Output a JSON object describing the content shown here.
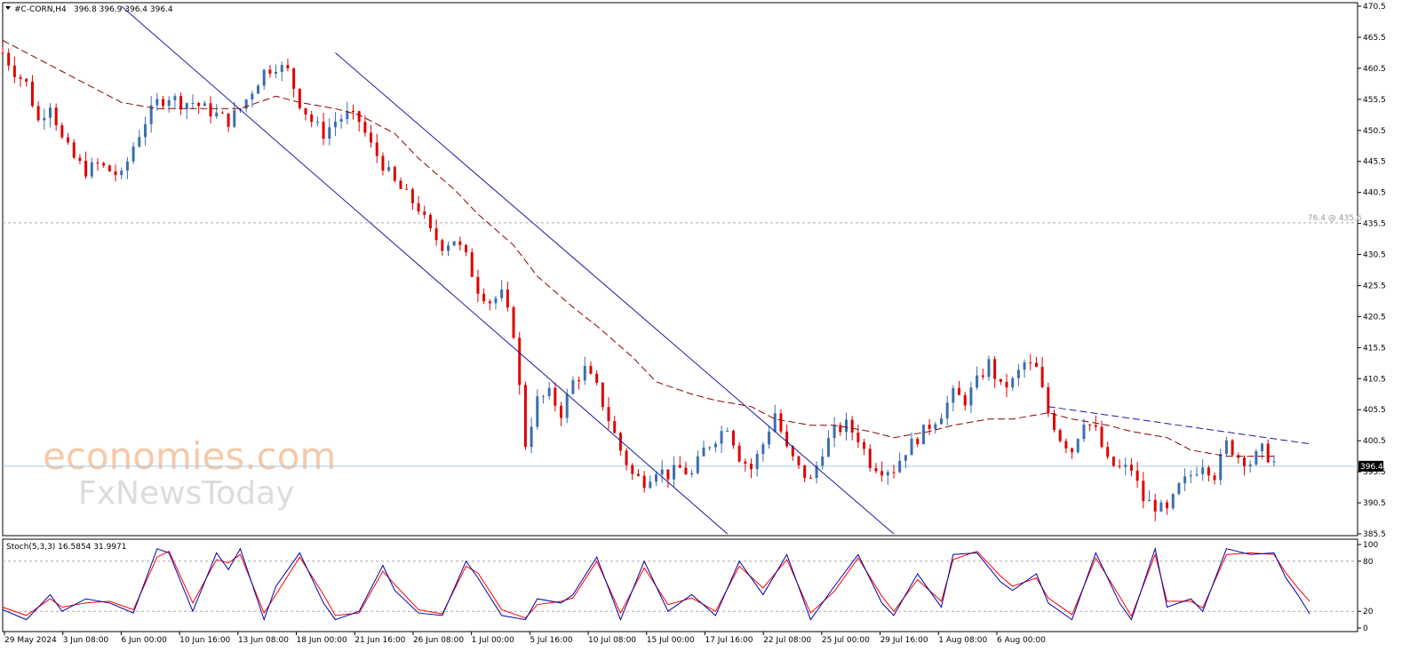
{
  "header": {
    "symbol_label": "#C-CORN,H4",
    "ohlc": "396.8 396.9 396.4 396.4"
  },
  "stoch_label": "Stoch(5,3,3) 16.5854 31.9971",
  "fib_label": "76.4 @ 435.6",
  "current_price": "396.4",
  "watermark": {
    "line1": "economies.com",
    "line2": "FxNewsToday"
  },
  "colors": {
    "bull": "#3a6fb0",
    "bear": "#e00000",
    "ma": "#8b0000",
    "channel": "#1a1aa6",
    "stoch_main": "#0000aa",
    "stoch_signal": "#ff0000",
    "price_line": "#a9cce3"
  },
  "chart_data": {
    "type": "candlestick",
    "symbol": "#C-CORN",
    "timeframe": "H4",
    "ylim": [
      385.5,
      470.5
    ],
    "y_ticks": [
      "470.5",
      "465.5",
      "460.5",
      "455.5",
      "450.5",
      "445.5",
      "440.5",
      "435.5",
      "430.5",
      "425.5",
      "420.5",
      "415.5",
      "410.5",
      "405.5",
      "400.5",
      "395.5",
      "390.5",
      "385.5"
    ],
    "x_labels": [
      "29 May 2024",
      "3 Jun 08:00",
      "6 Jun 00:00",
      "10 Jun 16:00",
      "13 Jun 08:00",
      "18 Jun 00:00",
      "21 Jun 16:00",
      "26 Jun 08:00",
      "1 Jul 00:00",
      "5 Jul 16:00",
      "10 Jul 08:00",
      "15 Jul 00:00",
      "17 Jul 16:00",
      "22 Jul 08:00",
      "25 Jul 00:00",
      "29 Jul 16:00",
      "1 Aug 08:00",
      "6 Aug 00:00"
    ],
    "close_path": [
      [
        0,
        463
      ],
      [
        2,
        460
      ],
      [
        4,
        458
      ],
      [
        6,
        452
      ],
      [
        8,
        455
      ],
      [
        10,
        449
      ],
      [
        12,
        446
      ],
      [
        14,
        444
      ],
      [
        16,
        445
      ],
      [
        18,
        444
      ],
      [
        20,
        443
      ],
      [
        22,
        448
      ],
      [
        24,
        452
      ],
      [
        26,
        455
      ],
      [
        28,
        456
      ],
      [
        30,
        455
      ],
      [
        32,
        455
      ],
      [
        34,
        454
      ],
      [
        36,
        453
      ],
      [
        38,
        452
      ],
      [
        40,
        454
      ],
      [
        42,
        457
      ],
      [
        44,
        460
      ],
      [
        46,
        461
      ],
      [
        48,
        460
      ],
      [
        50,
        455
      ],
      [
        52,
        452
      ],
      [
        54,
        450
      ],
      [
        56,
        452
      ],
      [
        58,
        453
      ],
      [
        60,
        452
      ],
      [
        62,
        448
      ],
      [
        64,
        445
      ],
      [
        66,
        442
      ],
      [
        68,
        440
      ],
      [
        70,
        438
      ],
      [
        72,
        434
      ],
      [
        74,
        432
      ],
      [
        76,
        433
      ],
      [
        78,
        430
      ],
      [
        80,
        425
      ],
      [
        82,
        423
      ],
      [
        84,
        424
      ],
      [
        86,
        418
      ],
      [
        88,
        400
      ],
      [
        90,
        407
      ],
      [
        92,
        408
      ],
      [
        94,
        405
      ],
      [
        96,
        410
      ],
      [
        98,
        412
      ],
      [
        100,
        409
      ],
      [
        102,
        404
      ],
      [
        104,
        399
      ],
      [
        106,
        395
      ],
      [
        108,
        394
      ],
      [
        110,
        396
      ],
      [
        112,
        395
      ],
      [
        114,
        396
      ],
      [
        116,
        395
      ],
      [
        118,
        399
      ],
      [
        120,
        401
      ],
      [
        122,
        403
      ],
      [
        124,
        398
      ],
      [
        126,
        396
      ],
      [
        128,
        400
      ],
      [
        130,
        405
      ],
      [
        132,
        399
      ],
      [
        134,
        396
      ],
      [
        136,
        394
      ],
      [
        138,
        399
      ],
      [
        140,
        402
      ],
      [
        142,
        403
      ],
      [
        144,
        401
      ],
      [
        146,
        397
      ],
      [
        148,
        396
      ],
      [
        150,
        396
      ],
      [
        152,
        399
      ],
      [
        154,
        401
      ],
      [
        156,
        403
      ],
      [
        158,
        405
      ],
      [
        160,
        408
      ],
      [
        162,
        407
      ],
      [
        164,
        410
      ],
      [
        166,
        413
      ],
      [
        168,
        409
      ],
      [
        170,
        410
      ],
      [
        172,
        413
      ],
      [
        174,
        412
      ],
      [
        176,
        405
      ],
      [
        178,
        401
      ],
      [
        180,
        399
      ],
      [
        182,
        404
      ],
      [
        184,
        402
      ],
      [
        186,
        397
      ],
      [
        188,
        396
      ],
      [
        190,
        396
      ],
      [
        192,
        391
      ],
      [
        194,
        390
      ],
      [
        196,
        389
      ],
      [
        198,
        393
      ],
      [
        200,
        395
      ],
      [
        202,
        397
      ],
      [
        204,
        395
      ],
      [
        206,
        400
      ],
      [
        208,
        398
      ],
      [
        210,
        397
      ],
      [
        212,
        399
      ],
      [
        214,
        397
      ]
    ],
    "ma_path": [
      [
        0,
        465
      ],
      [
        10,
        460
      ],
      [
        20,
        455
      ],
      [
        26,
        454
      ],
      [
        30,
        454
      ],
      [
        36,
        454
      ],
      [
        40,
        454
      ],
      [
        46,
        456
      ],
      [
        50,
        455
      ],
      [
        56,
        454
      ],
      [
        60,
        453
      ],
      [
        66,
        450
      ],
      [
        70,
        446
      ],
      [
        76,
        441
      ],
      [
        80,
        437
      ],
      [
        86,
        432
      ],
      [
        90,
        427
      ],
      [
        96,
        422
      ],
      [
        100,
        419
      ],
      [
        106,
        414
      ],
      [
        110,
        410
      ],
      [
        116,
        408
      ],
      [
        120,
        407
      ],
      [
        126,
        406
      ],
      [
        130,
        404
      ],
      [
        136,
        403
      ],
      [
        140,
        403
      ],
      [
        146,
        402
      ],
      [
        150,
        401
      ],
      [
        156,
        402
      ],
      [
        160,
        403
      ],
      [
        166,
        404
      ],
      [
        170,
        404
      ],
      [
        176,
        405
      ],
      [
        180,
        404
      ],
      [
        186,
        403
      ],
      [
        190,
        402
      ],
      [
        196,
        401
      ],
      [
        200,
        399
      ],
      [
        206,
        398
      ],
      [
        210,
        398
      ],
      [
        214,
        398
      ]
    ],
    "trendlines": [
      {
        "name": "channel-upper",
        "from": [
          56,
          463
        ],
        "to": [
          150,
          385.5
        ]
      },
      {
        "name": "channel-lower",
        "from": [
          20,
          470.5
        ],
        "to": [
          122,
          385.5
        ]
      },
      {
        "name": "resistance-dashed",
        "from": [
          176,
          406
        ],
        "to": [
          220,
          400
        ]
      }
    ],
    "horizontal_lines": [
      {
        "name": "fib-76.4",
        "value": 435.6
      },
      {
        "name": "current-price",
        "value": 396.4
      }
    ],
    "stochastic": {
      "params": "Stoch(5,3,3)",
      "main": 16.5854,
      "signal": 31.9971,
      "levels": [
        20,
        80
      ],
      "y_ticks": [
        "100",
        "80",
        "20",
        "0"
      ],
      "main_path": [
        [
          0,
          22
        ],
        [
          4,
          10
        ],
        [
          8,
          40
        ],
        [
          10,
          20
        ],
        [
          14,
          35
        ],
        [
          18,
          30
        ],
        [
          22,
          18
        ],
        [
          26,
          95
        ],
        [
          28,
          90
        ],
        [
          32,
          20
        ],
        [
          36,
          90
        ],
        [
          38,
          70
        ],
        [
          40,
          95
        ],
        [
          44,
          10
        ],
        [
          46,
          50
        ],
        [
          50,
          90
        ],
        [
          54,
          30
        ],
        [
          56,
          10
        ],
        [
          60,
          20
        ],
        [
          64,
          75
        ],
        [
          66,
          45
        ],
        [
          70,
          18
        ],
        [
          74,
          15
        ],
        [
          78,
          80
        ],
        [
          80,
          60
        ],
        [
          84,
          15
        ],
        [
          88,
          10
        ],
        [
          90,
          35
        ],
        [
          94,
          30
        ],
        [
          96,
          40
        ],
        [
          100,
          85
        ],
        [
          104,
          10
        ],
        [
          108,
          80
        ],
        [
          112,
          20
        ],
        [
          116,
          40
        ],
        [
          120,
          15
        ],
        [
          124,
          80
        ],
        [
          128,
          40
        ],
        [
          132,
          88
        ],
        [
          136,
          10
        ],
        [
          140,
          50
        ],
        [
          144,
          88
        ],
        [
          148,
          30
        ],
        [
          150,
          15
        ],
        [
          154,
          65
        ],
        [
          158,
          25
        ],
        [
          160,
          88
        ],
        [
          164,
          90
        ],
        [
          168,
          55
        ],
        [
          170,
          45
        ],
        [
          174,
          65
        ],
        [
          176,
          30
        ],
        [
          180,
          10
        ],
        [
          184,
          90
        ],
        [
          188,
          30
        ],
        [
          190,
          10
        ],
        [
          194,
          95
        ],
        [
          196,
          25
        ],
        [
          200,
          35
        ],
        [
          202,
          20
        ],
        [
          206,
          95
        ],
        [
          210,
          88
        ],
        [
          214,
          90
        ],
        [
          216,
          60
        ],
        [
          218,
          40
        ],
        [
          220,
          17
        ]
      ],
      "signal_path": [
        [
          0,
          25
        ],
        [
          4,
          15
        ],
        [
          8,
          35
        ],
        [
          10,
          25
        ],
        [
          14,
          30
        ],
        [
          18,
          32
        ],
        [
          22,
          22
        ],
        [
          26,
          85
        ],
        [
          28,
          92
        ],
        [
          32,
          30
        ],
        [
          36,
          82
        ],
        [
          38,
          78
        ],
        [
          40,
          88
        ],
        [
          44,
          18
        ],
        [
          46,
          40
        ],
        [
          50,
          85
        ],
        [
          54,
          40
        ],
        [
          56,
          15
        ],
        [
          60,
          18
        ],
        [
          64,
          68
        ],
        [
          66,
          52
        ],
        [
          70,
          22
        ],
        [
          74,
          17
        ],
        [
          78,
          74
        ],
        [
          80,
          66
        ],
        [
          84,
          22
        ],
        [
          88,
          12
        ],
        [
          90,
          28
        ],
        [
          94,
          32
        ],
        [
          96,
          36
        ],
        [
          100,
          80
        ],
        [
          104,
          18
        ],
        [
          108,
          72
        ],
        [
          112,
          28
        ],
        [
          116,
          36
        ],
        [
          120,
          20
        ],
        [
          124,
          74
        ],
        [
          128,
          48
        ],
        [
          132,
          82
        ],
        [
          136,
          18
        ],
        [
          140,
          44
        ],
        [
          144,
          84
        ],
        [
          148,
          38
        ],
        [
          150,
          20
        ],
        [
          154,
          58
        ],
        [
          158,
          32
        ],
        [
          160,
          82
        ],
        [
          164,
          92
        ],
        [
          168,
          62
        ],
        [
          170,
          50
        ],
        [
          174,
          60
        ],
        [
          176,
          36
        ],
        [
          180,
          16
        ],
        [
          184,
          84
        ],
        [
          188,
          38
        ],
        [
          190,
          14
        ],
        [
          194,
          88
        ],
        [
          196,
          32
        ],
        [
          200,
          32
        ],
        [
          202,
          24
        ],
        [
          206,
          88
        ],
        [
          210,
          90
        ],
        [
          214,
          88
        ],
        [
          216,
          66
        ],
        [
          218,
          48
        ],
        [
          220,
          32
        ]
      ]
    }
  }
}
